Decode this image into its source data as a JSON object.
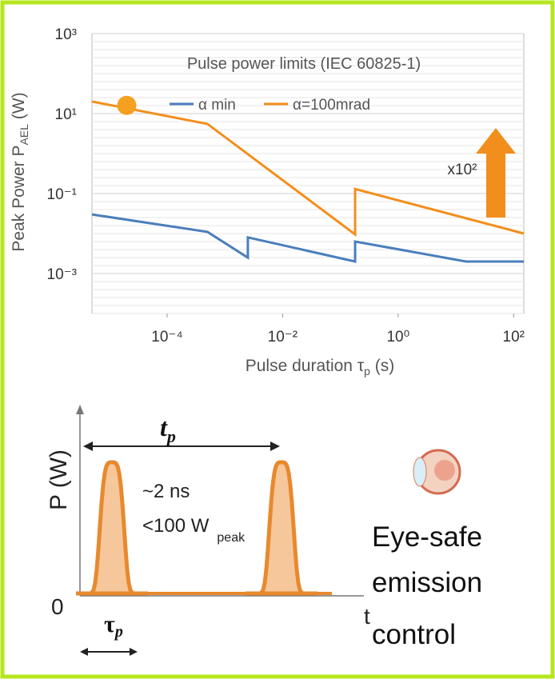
{
  "chart_data": {
    "type": "line",
    "title": "Pulse power limits (IEC 60825-1)",
    "x_label": "Pulse duration τ",
    "x_label_sub": "p",
    "x_label_end": " (s)",
    "y_label": "Peak Power P",
    "y_label_sub": "AEL",
    "y_label_end": " (W)",
    "xlog": true,
    "ylog": true,
    "grid": true,
    "xlim": [
      5e-06,
      150
    ],
    "ylim": [
      0.0001,
      1000
    ],
    "xticks": [
      {
        "value": 0.0001,
        "label": "10⁻⁴"
      },
      {
        "value": 0.01,
        "label": "10⁻²"
      },
      {
        "value": 1,
        "label": "10⁰"
      },
      {
        "value": 100,
        "label": "10²"
      }
    ],
    "yticks": [
      {
        "value": 1000,
        "label": "10³"
      },
      {
        "value": 10,
        "label": "10¹"
      },
      {
        "value": 0.1,
        "label": "10⁻¹"
      },
      {
        "value": 0.001,
        "label": "10⁻³"
      }
    ],
    "series": [
      {
        "name": "α min",
        "color": "#4a7ebb",
        "x": [
          5e-06,
          0.0005,
          0.0025,
          0.0025,
          0.18,
          0.18,
          15,
          150
        ],
        "values": [
          0.03,
          0.011,
          0.0025,
          0.008,
          0.002,
          0.0063,
          0.002,
          0.002
        ]
      },
      {
        "name": "α=100mrad",
        "color": "#f28e1c",
        "x": [
          5e-06,
          0.0005,
          0.18,
          0.18,
          150
        ],
        "values": [
          20,
          5.5,
          0.0095,
          0.13,
          0.01
        ]
      }
    ],
    "marker": {
      "x": 2e-05,
      "y": 16,
      "color": "#f5a020"
    },
    "annotation": "x10²"
  },
  "diagram": {
    "y_axis": "P (W)",
    "period": "t",
    "period_sub": "p",
    "pulse_width": "~2 ns",
    "peak_power": "<100 W",
    "peak_power_sub": "peak",
    "zero": "0",
    "time": "t",
    "width": "τ",
    "width_sub": "p",
    "caption": [
      "Eye-safe",
      "emission",
      "control"
    ]
  }
}
